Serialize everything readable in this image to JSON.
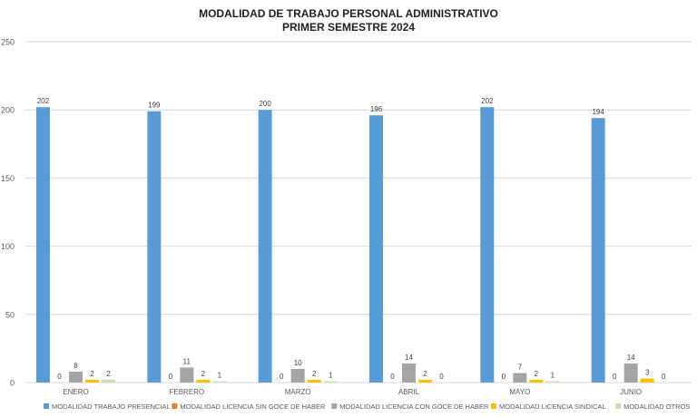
{
  "chart_data": {
    "type": "bar",
    "title": "MODALIDAD DE TRABAJO PERSONAL ADMINISTRATIVO",
    "subtitle": "PRIMER SEMESTRE 2024",
    "xlabel": "",
    "ylabel": "",
    "ylim": [
      0,
      250
    ],
    "yticks": [
      0,
      50,
      100,
      150,
      200,
      250
    ],
    "grid": true,
    "legend_position": "bottom",
    "categories": [
      "ENERO",
      "FEBRERO",
      "MARZO",
      "ABRIL",
      "MAYO",
      "JUNIO"
    ],
    "series": [
      {
        "name": "MODALIDAD TRABAJO PRESENCIAL",
        "color": "#5B9BD5",
        "values": [
          202,
          199,
          200,
          196,
          202,
          194
        ]
      },
      {
        "name": "MODALIDAD LICENCIA SIN GOCE DE HABER",
        "color": "#ED7D31",
        "values": [
          0,
          0,
          0,
          0,
          0,
          0
        ]
      },
      {
        "name": "MODALIDAD LICENCIA CON GOCE DE HABER",
        "color": "#A5A5A5",
        "values": [
          8,
          11,
          10,
          14,
          7,
          14
        ]
      },
      {
        "name": "MODALIDAD LICENCIA SINDICAL",
        "color": "#FFC000",
        "values": [
          2,
          2,
          2,
          2,
          2,
          3
        ]
      },
      {
        "name": "MODALIDAD OTROS",
        "color": "#C5E0B4",
        "values": [
          2,
          1,
          1,
          0,
          1,
          0
        ]
      }
    ]
  }
}
